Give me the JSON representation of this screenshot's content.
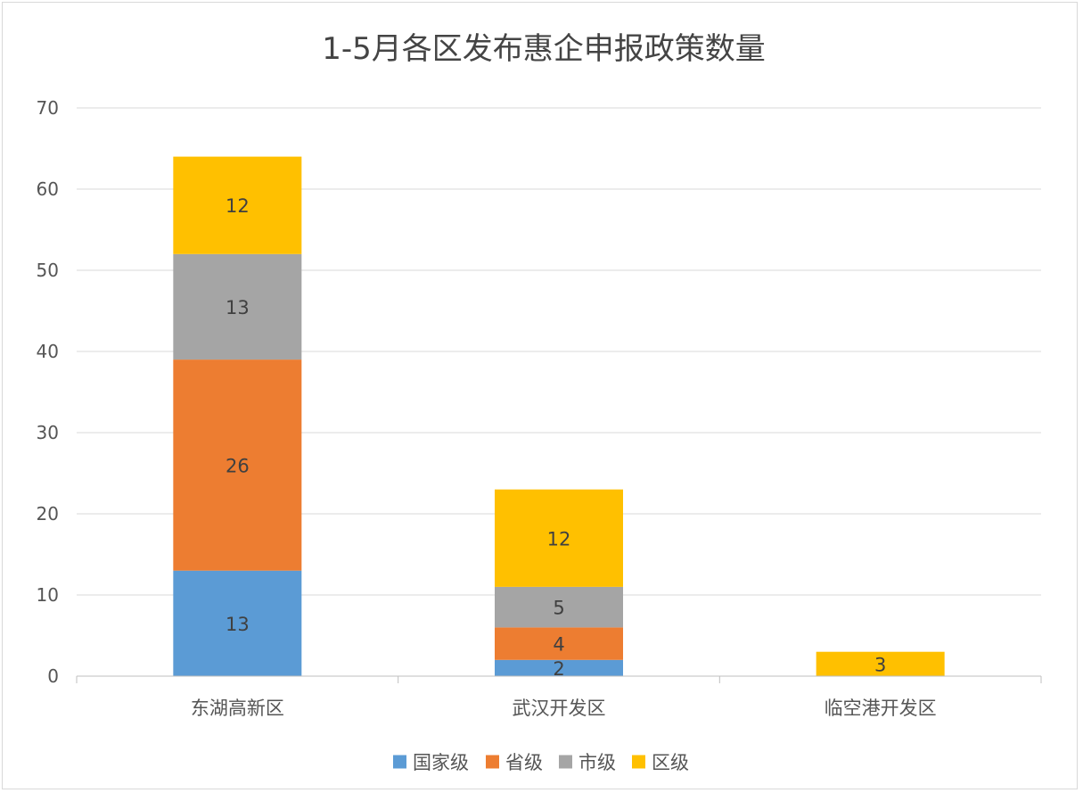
{
  "chart_data": {
    "type": "bar",
    "stacked": true,
    "title": "1-5月各区发布惠企申报政策数量",
    "xlabel": "",
    "ylabel": "",
    "ylim": [
      0,
      70
    ],
    "yticks": [
      0,
      10,
      20,
      30,
      40,
      50,
      60,
      70
    ],
    "grid": true,
    "legend_position": "bottom",
    "categories": [
      "东湖高新区",
      "武汉开发区",
      "临空港开发区"
    ],
    "series": [
      {
        "name": "国家级",
        "color": "#5b9bd5",
        "values": [
          13,
          2,
          0
        ]
      },
      {
        "name": "省级",
        "color": "#ed7d31",
        "values": [
          26,
          4,
          0
        ]
      },
      {
        "name": "市级",
        "color": "#a5a5a5",
        "values": [
          13,
          5,
          0
        ]
      },
      {
        "name": "区级",
        "color": "#ffc000",
        "values": [
          12,
          12,
          3
        ]
      }
    ]
  }
}
